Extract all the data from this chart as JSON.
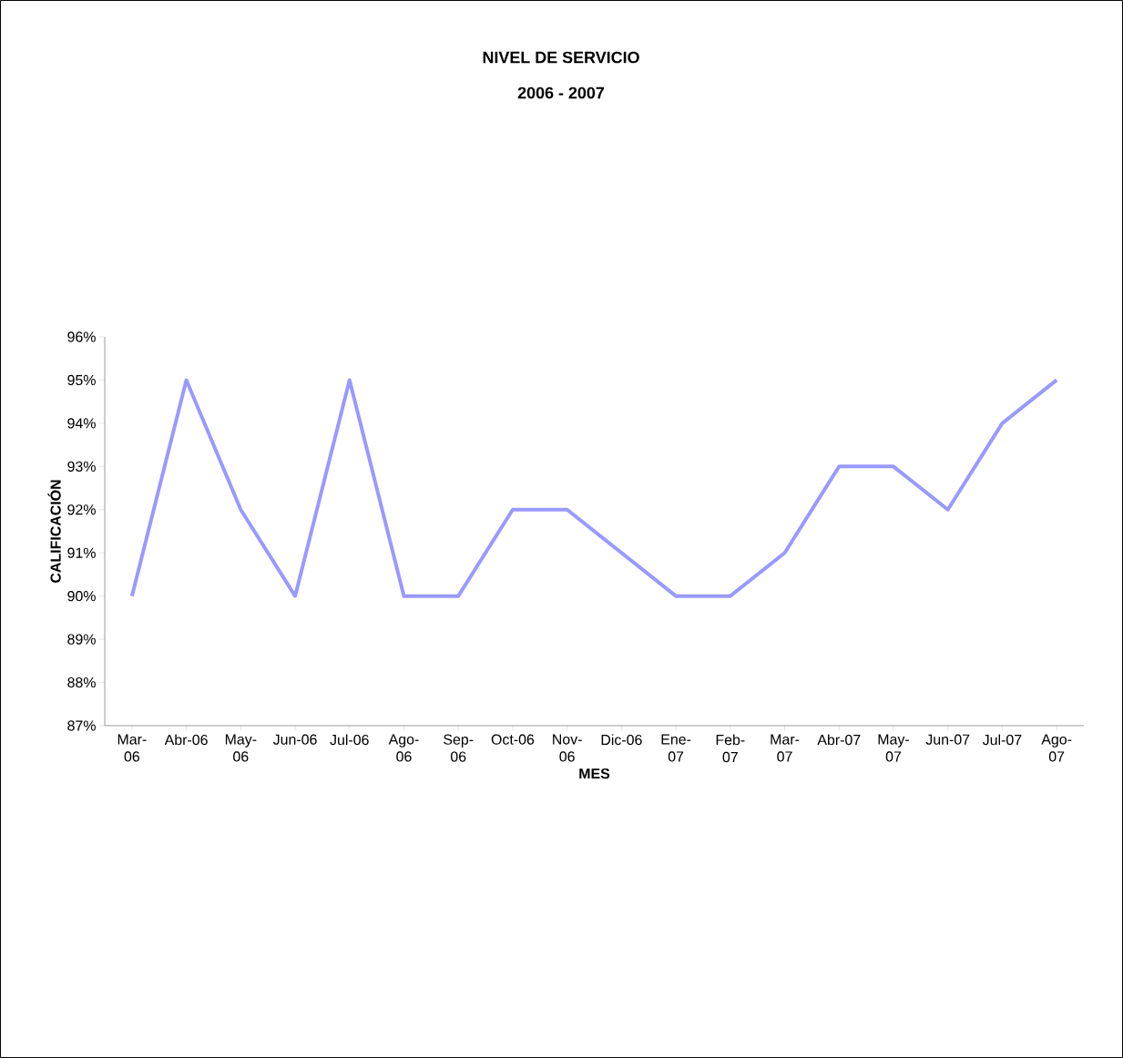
{
  "chart_data": {
    "type": "line",
    "title": "NIVEL DE SERVICIO",
    "subtitle": "2006 - 2007",
    "xlabel": "MES",
    "ylabel": "CALIFICACIÓN",
    "categories": [
      "Mar-06",
      "Abr-06",
      "May-06",
      "Jun-06",
      "Jul-06",
      "Ago-06",
      "Sep-06",
      "Oct-06",
      "Nov-06",
      "Dic-06",
      "Ene-07",
      "Feb-07",
      "Mar-07",
      "Abr-07",
      "May-07",
      "Jun-07",
      "Jul-07",
      "Ago-07"
    ],
    "series": [
      {
        "color": "#9999ff",
        "values": [
          90,
          95,
          92,
          90,
          95,
          90,
          90,
          92,
          92,
          91,
          90,
          90,
          91,
          93,
          93,
          92,
          94,
          95
        ]
      }
    ],
    "ylim": [
      87,
      96
    ],
    "yticks": [
      {
        "value": 87,
        "label": "87%"
      },
      {
        "value": 88,
        "label": "88%"
      },
      {
        "value": 89,
        "label": "89%"
      },
      {
        "value": 90,
        "label": "90%"
      },
      {
        "value": 91,
        "label": "91%"
      },
      {
        "value": 92,
        "label": "92%"
      },
      {
        "value": 93,
        "label": "93%"
      },
      {
        "value": 94,
        "label": "94%"
      },
      {
        "value": 95,
        "label": "95%"
      },
      {
        "value": 96,
        "label": "96%"
      }
    ],
    "grid": false,
    "marker": "none",
    "line_style": "solid"
  }
}
